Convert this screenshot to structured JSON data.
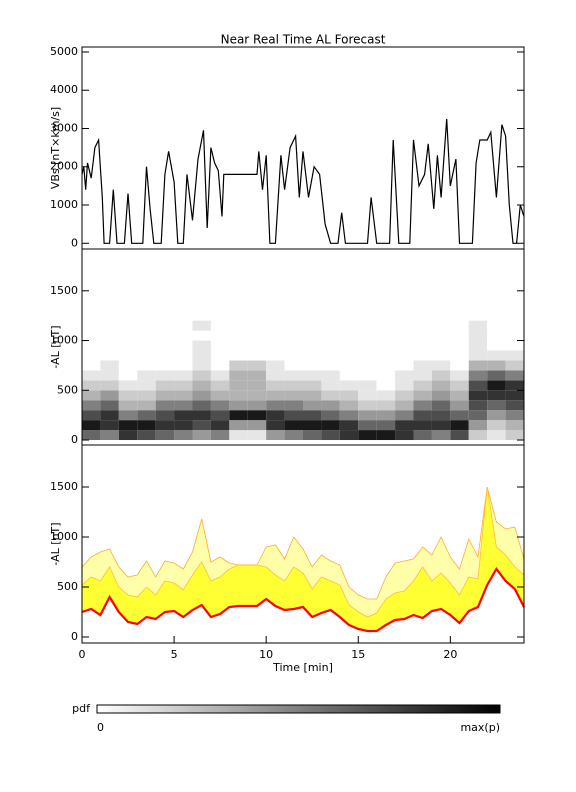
{
  "chart_data": [
    {
      "type": "line",
      "title": "Near Real Time AL Forecast",
      "ylabel": "VBs [nT×km/s]",
      "color": "#000000",
      "xlim": [
        0,
        24
      ],
      "ylim": [
        -150,
        5130
      ],
      "yticks": [
        0,
        1000,
        2000,
        3000,
        4000,
        5000
      ],
      "x": [
        0,
        0.1,
        0.2,
        0.3,
        0.5,
        0.7,
        0.9,
        1.1,
        1.2,
        1.5,
        1.7,
        1.9,
        2.3,
        2.5,
        2.7,
        3.3,
        3.5,
        3.7,
        3.9,
        4.3,
        4.5,
        4.7,
        5.0,
        5.2,
        5.5,
        5.7,
        6,
        6.3,
        6.6,
        6.8,
        7,
        7.2,
        7.4,
        7.6,
        7.7,
        9.5,
        9.6,
        9.8,
        10.0,
        10.2,
        10.5,
        10.8,
        11.0,
        11.3,
        11.6,
        11.8,
        12.0,
        12.3,
        12.6,
        12.9,
        13.2,
        13.5,
        13.9,
        14.1,
        14.3,
        15.5,
        15.7,
        16,
        16.7,
        16.9,
        17.2,
        17.8,
        18.0,
        18.3,
        18.6,
        18.8,
        19.1,
        19.3,
        19.5,
        19.8,
        20.0,
        20.3,
        20.5,
        21.2,
        21.4,
        21.6,
        22.0,
        22.2,
        22.5,
        22.8,
        23.0,
        23.2,
        23.4,
        23.6,
        23.8,
        24
      ],
      "values": [
        1800,
        2000,
        1400,
        2100,
        1700,
        2500,
        2700,
        1200,
        0,
        0,
        1400,
        0,
        0,
        1300,
        0,
        0,
        2000,
        900,
        0,
        0,
        1800,
        2400,
        1600,
        0,
        0,
        1800,
        600,
        2200,
        2950,
        400,
        2500,
        2100,
        1900,
        700,
        1800,
        1800,
        2400,
        1400,
        2300,
        0,
        0,
        2300,
        1400,
        2500,
        2800,
        1200,
        2400,
        1200,
        2000,
        1800,
        500,
        0,
        0,
        800,
        0,
        0,
        1200,
        0,
        0,
        2700,
        0,
        0,
        2700,
        1500,
        1800,
        2600,
        900,
        2300,
        1200,
        3250,
        1500,
        2200,
        0,
        0,
        2100,
        2700,
        2700,
        2900,
        1200,
        3100,
        2800,
        1000,
        0,
        0,
        1000,
        700
      ]
    },
    {
      "type": "heatmap",
      "ylabel": "-AL [nT]",
      "xlim": [
        0,
        24
      ],
      "ylim": [
        -50,
        1920
      ],
      "yticks": [
        0,
        500,
        1000,
        1500
      ],
      "xbins": [
        0,
        1,
        2,
        3,
        4,
        5,
        6,
        7,
        8,
        9,
        10,
        11,
        12,
        13,
        14,
        15,
        16,
        17,
        18,
        19,
        20,
        21,
        22,
        23,
        24
      ],
      "ybins": [
        0,
        100,
        200,
        300,
        400,
        500,
        600,
        700,
        800,
        900,
        1000,
        1100,
        1200
      ],
      "z": [
        [
          0.6,
          0.9,
          0.7,
          0.5,
          0.3,
          0.2,
          0.1,
          0,
          0,
          0,
          0,
          0
        ],
        [
          0.5,
          0.8,
          0.8,
          0.6,
          0.4,
          0.2,
          0.1,
          0.1,
          0,
          0,
          0,
          0
        ],
        [
          0.8,
          0.9,
          0.5,
          0.3,
          0.2,
          0.1,
          0,
          0,
          0,
          0,
          0,
          0
        ],
        [
          0.7,
          0.9,
          0.6,
          0.3,
          0.2,
          0.1,
          0.1,
          0,
          0,
          0,
          0,
          0
        ],
        [
          0.6,
          0.8,
          0.7,
          0.5,
          0.3,
          0.2,
          0.1,
          0,
          0,
          0,
          0,
          0
        ],
        [
          0.5,
          0.8,
          0.8,
          0.5,
          0.3,
          0.2,
          0.1,
          0,
          0,
          0,
          0,
          0
        ],
        [
          0.4,
          0.7,
          0.8,
          0.6,
          0.4,
          0.3,
          0.2,
          0.1,
          0.1,
          0.1,
          0,
          0.1
        ],
        [
          0.5,
          0.8,
          0.7,
          0.5,
          0.3,
          0.2,
          0.1,
          0,
          0,
          0,
          0,
          0
        ],
        [
          0.1,
          0.4,
          0.9,
          0.4,
          0.3,
          0.3,
          0.3,
          0.2,
          0,
          0,
          0,
          0
        ],
        [
          0.1,
          0.4,
          0.9,
          0.4,
          0.3,
          0.3,
          0.3,
          0.2,
          0,
          0,
          0,
          0
        ],
        [
          0.4,
          0.8,
          0.8,
          0.5,
          0.3,
          0.2,
          0.1,
          0.1,
          0,
          0,
          0,
          0
        ],
        [
          0.5,
          0.9,
          0.7,
          0.5,
          0.3,
          0.2,
          0.1,
          0,
          0,
          0,
          0,
          0
        ],
        [
          0.6,
          0.9,
          0.7,
          0.4,
          0.3,
          0.2,
          0.1,
          0,
          0,
          0,
          0,
          0
        ],
        [
          0.7,
          0.9,
          0.6,
          0.4,
          0.2,
          0.1,
          0.1,
          0,
          0,
          0,
          0,
          0
        ],
        [
          0.8,
          0.8,
          0.5,
          0.3,
          0.2,
          0.1,
          0,
          0,
          0,
          0,
          0,
          0
        ],
        [
          0.9,
          0.6,
          0.4,
          0.2,
          0.1,
          0.1,
          0,
          0,
          0,
          0,
          0,
          0
        ],
        [
          0.9,
          0.6,
          0.4,
          0.2,
          0.1,
          0,
          0,
          0,
          0,
          0,
          0,
          0
        ],
        [
          0.8,
          0.8,
          0.5,
          0.3,
          0.2,
          0.1,
          0.1,
          0,
          0,
          0,
          0,
          0
        ],
        [
          0.6,
          0.8,
          0.7,
          0.5,
          0.3,
          0.2,
          0.1,
          0.1,
          0,
          0,
          0,
          0
        ],
        [
          0.5,
          0.8,
          0.7,
          0.6,
          0.4,
          0.3,
          0.2,
          0.1,
          0,
          0,
          0,
          0
        ],
        [
          0.7,
          0.9,
          0.6,
          0.4,
          0.3,
          0.2,
          0.1,
          0,
          0,
          0,
          0,
          0
        ],
        [
          0.2,
          0.4,
          0.6,
          0.7,
          0.8,
          0.7,
          0.5,
          0.3,
          0.1,
          0.1,
          0.1,
          0.1
        ],
        [
          0.1,
          0.2,
          0.4,
          0.6,
          0.8,
          0.9,
          0.6,
          0.3,
          0.1,
          0,
          0,
          0
        ],
        [
          0.2,
          0.3,
          0.5,
          0.7,
          0.8,
          0.8,
          0.5,
          0.2,
          0.1,
          0,
          0,
          0
        ]
      ],
      "zlim": [
        0,
        1
      ],
      "colorbar_label": "pdf",
      "zticks": [
        0,
        {
          "value": 1,
          "label": "max(p)"
        }
      ]
    },
    {
      "type": "band",
      "ylabel": "-AL [nT]",
      "xlabel": "Time [min]",
      "xlim": [
        0,
        24
      ],
      "xticks": [
        0,
        5,
        10,
        15,
        20
      ],
      "ylim": [
        -60,
        1920
      ],
      "yticks": [
        0,
        500,
        1000,
        1500
      ],
      "x": [
        0,
        0.5,
        1,
        1.5,
        2,
        2.5,
        3,
        3.5,
        4,
        4.5,
        5,
        5.5,
        6,
        6.5,
        7,
        7.5,
        8,
        8.5,
        9,
        9.5,
        10,
        10.5,
        11,
        11.5,
        12,
        12.5,
        13,
        13.5,
        14,
        14.5,
        15,
        15.5,
        16,
        16.5,
        17,
        17.5,
        18,
        18.5,
        19,
        19.5,
        20,
        20.5,
        21,
        21.5,
        22,
        22.5,
        23,
        23.5,
        24
      ],
      "outer_upper": {
        "color": "#ffaa33",
        "fill": "#ffffaa",
        "values": [
          700,
          800,
          850,
          880,
          700,
          600,
          620,
          760,
          600,
          760,
          740,
          680,
          850,
          1180,
          750,
          800,
          740,
          720,
          720,
          720,
          900,
          920,
          780,
          1000,
          880,
          700,
          820,
          760,
          720,
          500,
          420,
          380,
          380,
          600,
          740,
          760,
          780,
          900,
          820,
          1000,
          800,
          680,
          980,
          800,
          1500,
          1150,
          1080,
          1100,
          780
        ]
      },
      "inner_upper": {
        "color": "#ffbb44",
        "fill": "#ffff33",
        "values": [
          520,
          600,
          560,
          700,
          500,
          420,
          400,
          500,
          420,
          560,
          540,
          470,
          620,
          750,
          560,
          600,
          680,
          720,
          720,
          720,
          700,
          620,
          560,
          700,
          640,
          480,
          600,
          560,
          520,
          320,
          250,
          200,
          240,
          380,
          440,
          460,
          560,
          700,
          560,
          640,
          540,
          420,
          600,
          580,
          1500,
          900,
          820,
          700,
          620
        ]
      },
      "median": {
        "color": "#ff0000",
        "values": [
          250,
          280,
          220,
          400,
          250,
          150,
          130,
          200,
          180,
          250,
          260,
          200,
          270,
          320,
          200,
          230,
          300,
          310,
          310,
          310,
          380,
          310,
          270,
          280,
          300,
          200,
          240,
          270,
          200,
          120,
          80,
          60,
          60,
          120,
          170,
          180,
          220,
          190,
          260,
          280,
          220,
          140,
          260,
          300,
          520,
          680,
          560,
          480,
          300
        ]
      }
    }
  ]
}
